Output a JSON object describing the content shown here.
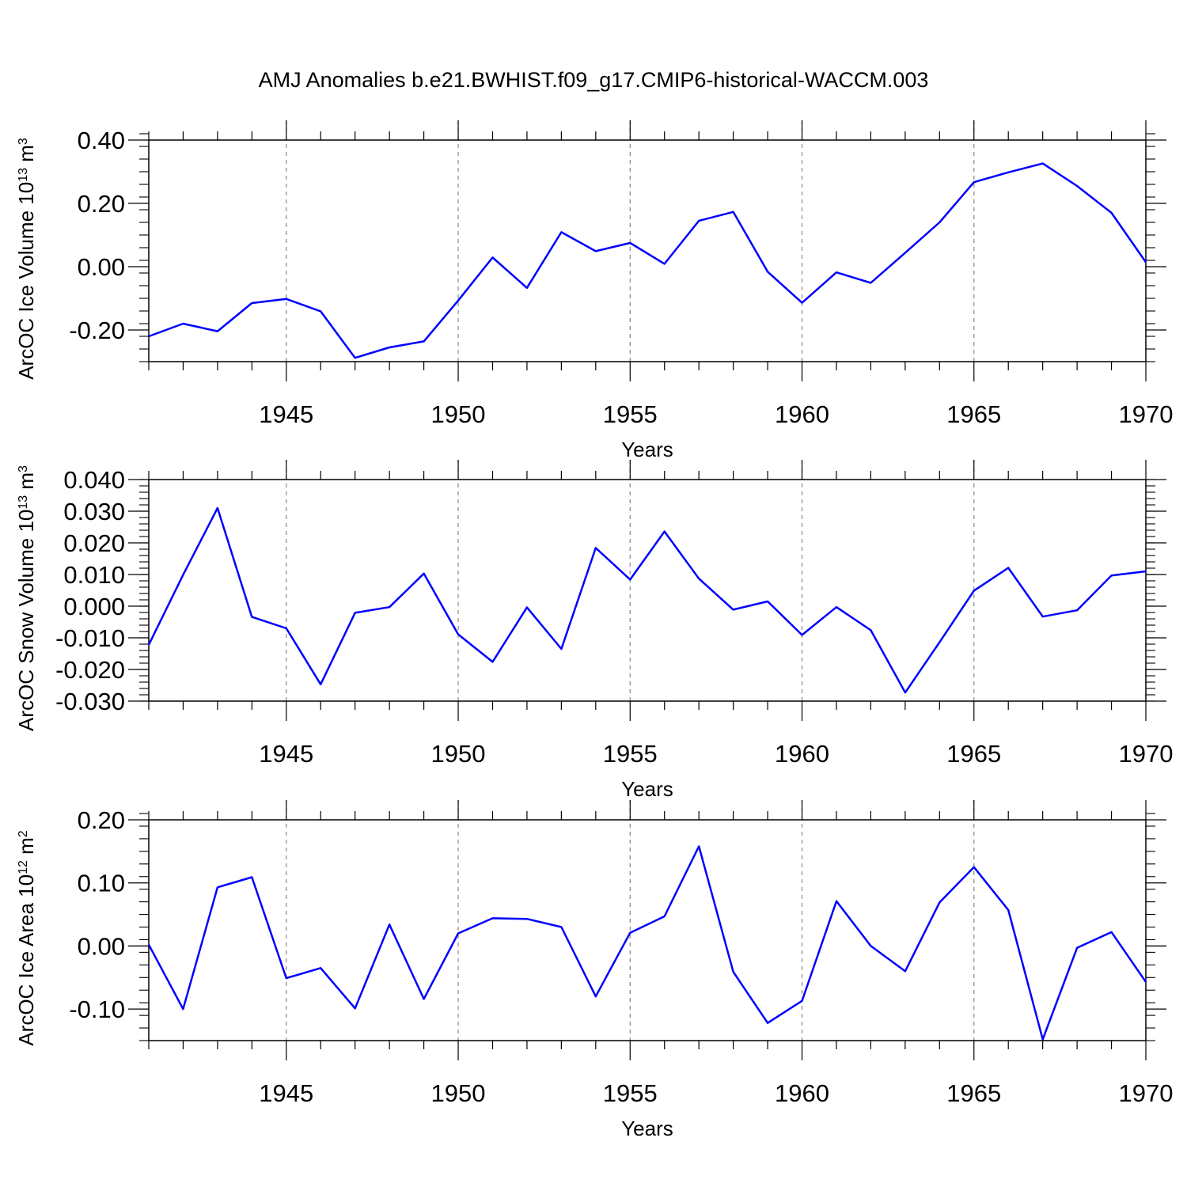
{
  "title": "AMJ Anomalies b.e21.BWHIST.f09_g17.CMIP6-historical-WACCM.003",
  "line_color": "#0000ff",
  "chart_data": [
    {
      "type": "line",
      "xlabel": "Years",
      "ylabel_main": "ArcOC Ice Volume 10",
      "ylabel_exp": "13",
      "ylabel_unit": " m",
      "ylabel_unit_exp": "3",
      "xlim": [
        1941,
        1970
      ],
      "ylim": [
        -0.3,
        0.4
      ],
      "yticks": [
        -0.2,
        0.0,
        0.2,
        0.4
      ],
      "ytick_labels": [
        "-0.20",
        "0.00",
        "0.20",
        "0.40"
      ],
      "yminor_step": 0.04,
      "xticks": [
        1945,
        1950,
        1955,
        1960,
        1965,
        1970
      ],
      "xtick_labels": [
        "1945",
        "1950",
        "1955",
        "1960",
        "1965",
        "1970"
      ],
      "series": [
        {
          "name": "ArcOC Ice Volume",
          "x": [
            1941,
            1942,
            1943,
            1944,
            1945,
            1946,
            1947,
            1948,
            1949,
            1950,
            1951,
            1952,
            1953,
            1954,
            1955,
            1956,
            1957,
            1958,
            1959,
            1960,
            1961,
            1962,
            1963,
            1964,
            1965,
            1966,
            1967,
            1968,
            1969,
            1970
          ],
          "y": [
            -0.22,
            -0.18,
            -0.204,
            -0.115,
            -0.102,
            -0.141,
            -0.288,
            -0.255,
            -0.236,
            -0.107,
            0.029,
            -0.067,
            0.109,
            0.049,
            0.075,
            0.009,
            0.145,
            0.173,
            -0.016,
            -0.114,
            -0.018,
            -0.051,
            0.044,
            0.14,
            0.267,
            0.298,
            0.326,
            0.255,
            0.17,
            0.014
          ]
        }
      ]
    },
    {
      "type": "line",
      "xlabel": "Years",
      "ylabel_main": "ArcOC Snow Volume 10",
      "ylabel_exp": "13",
      "ylabel_unit": " m",
      "ylabel_unit_exp": "3",
      "xlim": [
        1941,
        1970
      ],
      "ylim": [
        -0.03,
        0.04
      ],
      "yticks": [
        -0.03,
        -0.02,
        -0.01,
        0.0,
        0.01,
        0.02,
        0.03,
        0.04
      ],
      "ytick_labels": [
        "-0.030",
        "-0.020",
        "-0.010",
        "0.000",
        "0.010",
        "0.020",
        "0.030",
        "0.040"
      ],
      "yminor_step": 0.002,
      "xticks": [
        1945,
        1950,
        1955,
        1960,
        1965,
        1970
      ],
      "xtick_labels": [
        "1945",
        "1950",
        "1955",
        "1960",
        "1965",
        "1970"
      ],
      "series": [
        {
          "name": "ArcOC Snow Volume",
          "x": [
            1941,
            1942,
            1943,
            1944,
            1945,
            1946,
            1947,
            1948,
            1949,
            1950,
            1951,
            1952,
            1953,
            1954,
            1955,
            1956,
            1957,
            1958,
            1959,
            1960,
            1961,
            1962,
            1963,
            1964,
            1965,
            1966,
            1967,
            1968,
            1969,
            1970
          ],
          "y": [
            -0.0122,
            0.0099,
            0.031,
            -0.0034,
            -0.007,
            -0.0247,
            -0.0021,
            -0.0003,
            0.0103,
            -0.0089,
            -0.0176,
            -0.0004,
            -0.0135,
            0.0184,
            0.0084,
            0.0236,
            0.0087,
            -0.0011,
            0.0015,
            -0.0091,
            -0.0003,
            -0.0076,
            -0.0273,
            -0.0114,
            0.0049,
            0.0121,
            -0.0033,
            -0.0013,
            0.0097,
            0.011
          ]
        }
      ]
    },
    {
      "type": "line",
      "xlabel": "Years",
      "ylabel_main": "ArcOC Ice Area 10",
      "ylabel_exp": "12",
      "ylabel_unit": " m",
      "ylabel_unit_exp": "2",
      "xlim": [
        1941,
        1970
      ],
      "ylim": [
        -0.15,
        0.2
      ],
      "yticks": [
        -0.1,
        0.0,
        0.1,
        0.2
      ],
      "ytick_labels": [
        "-0.10",
        "0.00",
        "0.10",
        "0.20"
      ],
      "yminor_step": 0.02,
      "xticks": [
        1945,
        1950,
        1955,
        1960,
        1965,
        1970
      ],
      "xtick_labels": [
        "1945",
        "1950",
        "1955",
        "1960",
        "1965",
        "1970"
      ],
      "series": [
        {
          "name": "ArcOC Ice Area",
          "x": [
            1941,
            1942,
            1943,
            1944,
            1945,
            1946,
            1947,
            1948,
            1949,
            1950,
            1951,
            1952,
            1953,
            1954,
            1955,
            1956,
            1957,
            1958,
            1959,
            1960,
            1961,
            1962,
            1963,
            1964,
            1965,
            1966,
            1967,
            1968,
            1969,
            1970
          ],
          "y": [
            0.002,
            -0.1,
            0.093,
            0.109,
            -0.051,
            -0.035,
            -0.099,
            0.034,
            -0.084,
            0.02,
            0.044,
            0.043,
            0.03,
            -0.08,
            0.021,
            0.047,
            0.158,
            -0.041,
            -0.122,
            -0.087,
            0.071,
            0.0,
            -0.04,
            0.069,
            0.125,
            0.057,
            -0.148,
            -0.003,
            0.022,
            -0.057
          ]
        }
      ]
    }
  ]
}
